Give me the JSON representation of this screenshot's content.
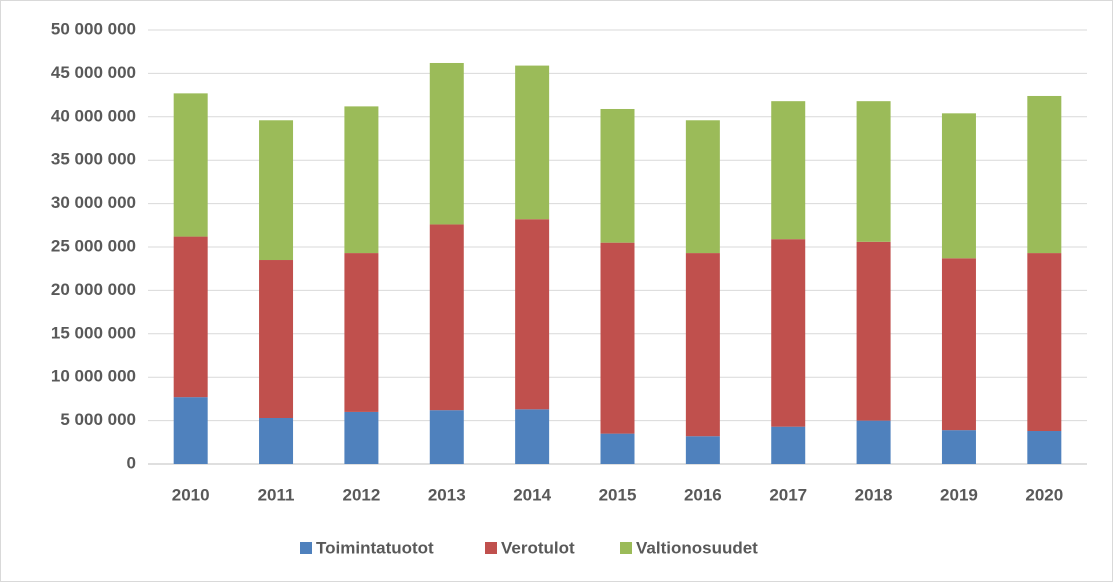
{
  "chart_data": {
    "type": "stacked_bar",
    "categories": [
      "2010",
      "2011",
      "2012",
      "2013",
      "2014",
      "2015",
      "2016",
      "2017",
      "2018",
      "2019",
      "2020"
    ],
    "series": [
      {
        "name": "Toimintatuotot",
        "color": "#4f81bd",
        "values": [
          7700000,
          5300000,
          6000000,
          6200000,
          6300000,
          3500000,
          3200000,
          4300000,
          5000000,
          3900000,
          3800000
        ]
      },
      {
        "name": "Verotulot",
        "color": "#c0504d",
        "values": [
          18500000,
          18200000,
          18300000,
          21400000,
          21900000,
          22000000,
          21100000,
          21600000,
          20600000,
          19800000,
          20500000
        ]
      },
      {
        "name": "Valtionosuudet",
        "color": "#9bbb59",
        "values": [
          16500000,
          16100000,
          16900000,
          18600000,
          17700000,
          15400000,
          15300000,
          15900000,
          16200000,
          16700000,
          18100000
        ]
      }
    ],
    "ylim": [
      0,
      50000000
    ],
    "yticks": [
      0,
      {
        "value": 5000000,
        "label": "5 000 000"
      },
      {
        "value": 10000000,
        "label": "10 000 000"
      },
      {
        "value": 15000000,
        "label": "15 000 000"
      },
      {
        "value": 20000000,
        "label": "20 000 000"
      },
      {
        "value": 25000000,
        "label": "25 000 000"
      },
      {
        "value": 30000000,
        "label": "30 000 000"
      },
      {
        "value": 35000000,
        "label": "35 000 000"
      },
      {
        "value": 40000000,
        "label": "40 000 000"
      },
      {
        "value": 45000000,
        "label": "45 000 000"
      },
      {
        "value": 50000000,
        "label": "50 000 000"
      }
    ],
    "grid": true,
    "legend": "bottom"
  }
}
